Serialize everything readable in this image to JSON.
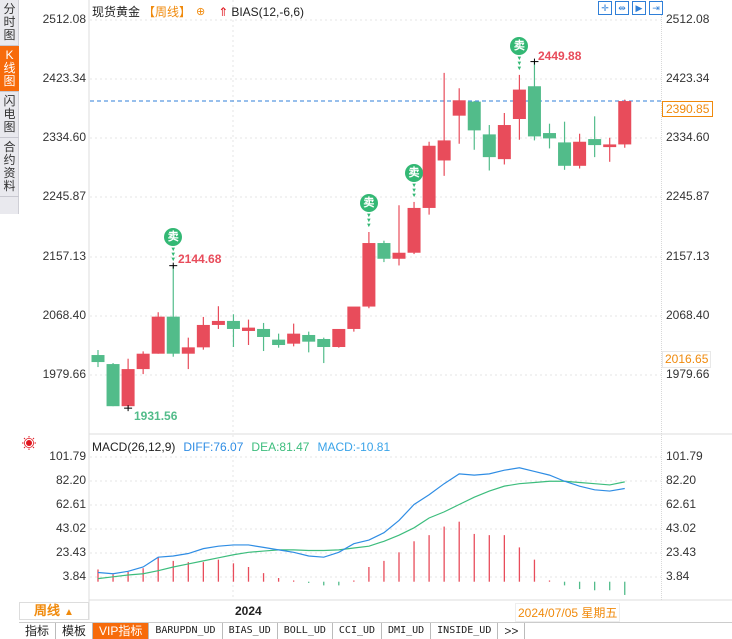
{
  "sidebar": {
    "tabs": [
      {
        "label": "分时图",
        "active": false
      },
      {
        "label": "K线图",
        "active": true
      },
      {
        "label": "闪电图",
        "active": false
      },
      {
        "label": "合约资料",
        "active": false
      }
    ]
  },
  "header": {
    "title": "现货黄金",
    "period": "【周线】",
    "plus_icon": "⊕",
    "arrow_icon": "⇑",
    "indicator": "BIAS(12,-6,6)"
  },
  "toolbar": {
    "buttons": [
      {
        "name": "crosshair-button",
        "icon": "✛"
      },
      {
        "name": "zoom-range-button",
        "icon": "⇹"
      },
      {
        "name": "zoom-in-button",
        "icon": "▶"
      },
      {
        "name": "move-end-button",
        "icon": "⇥"
      }
    ]
  },
  "price_axis": {
    "ticks": [
      "2512.08",
      "2423.34",
      "2334.60",
      "2245.87",
      "2157.13",
      "2068.40",
      "1979.66"
    ],
    "current_price": "2390.85",
    "cursor_price": "2016.65"
  },
  "annotations": {
    "low_label": "1931.56",
    "mid_high_label": "2144.68",
    "high_label": "2449.88",
    "sell_label": "卖"
  },
  "macd": {
    "name": "MACD(26,12,9)",
    "diff": "DIFF:76.07",
    "dea": "DEA:81.47",
    "macd": "MACD:-10.81",
    "ticks": [
      "101.79",
      "82.20",
      "62.61",
      "43.02",
      "23.43",
      "3.84"
    ]
  },
  "footer": {
    "period_label": "周线",
    "period_arrow": "▲",
    "year_label": "2024",
    "cursor_date": "2024/07/05 星期五"
  },
  "bottom_tabs": [
    {
      "label": "指标",
      "mono": false,
      "vip": false
    },
    {
      "label": "模板",
      "mono": false,
      "vip": false
    },
    {
      "label": "VIP指标",
      "mono": false,
      "vip": true
    },
    {
      "label": "BARUPDN_UD",
      "mono": true,
      "vip": false
    },
    {
      "label": "BIAS_UD",
      "mono": true,
      "vip": false
    },
    {
      "label": "BOLL_UD",
      "mono": true,
      "vip": false
    },
    {
      "label": "CCI_UD",
      "mono": true,
      "vip": false
    },
    {
      "label": "DMI_UD",
      "mono": true,
      "vip": false
    },
    {
      "label": "INSIDE_UD",
      "mono": true,
      "vip": false
    },
    {
      "label": ">>",
      "mono": false,
      "vip": false
    }
  ],
  "colors": {
    "up": "#e84c5b",
    "down": "#52bc8a",
    "accent": "#f76b0b",
    "diff_line": "#2f8de4",
    "dea_line": "#3dbd7d",
    "current_line": "#2f7fd8"
  },
  "chart_data": [
    {
      "type": "candlestick",
      "title": "现货黄金【周线】",
      "ylabel": "Price",
      "ylim": [
        1931.56,
        2512.08
      ],
      "y_ticks": [
        2512.08,
        2423.34,
        2334.6,
        2245.87,
        2157.13,
        2068.4,
        1979.66
      ],
      "current_price": 2390.85,
      "max_annotation": 2449.88,
      "min_annotation": 1931.56,
      "local_high_annotation": 2144.68,
      "grid": true,
      "candles": [
        {
          "o": 2011.0,
          "h": 2018.5,
          "l": 1993.0,
          "c": 2000.5
        },
        {
          "o": 1997.5,
          "h": 1999.0,
          "l": 1934.5,
          "c": 1934.5
        },
        {
          "o": 1934.5,
          "h": 2005.5,
          "l": 1931.56,
          "c": 1990.0
        },
        {
          "o": 1990.0,
          "h": 2016.5,
          "l": 1982.5,
          "c": 2013.0
        },
        {
          "o": 2013.0,
          "h": 2075.0,
          "l": 2013.0,
          "c": 2068.4
        },
        {
          "o": 2068.4,
          "h": 2144.68,
          "l": 2008.5,
          "c": 2013.0
        },
        {
          "o": 2013.0,
          "h": 2037.0,
          "l": 1990.0,
          "c": 2022.5
        },
        {
          "o": 2022.5,
          "h": 2068.0,
          "l": 2019.0,
          "c": 2056.0
        },
        {
          "o": 2056.0,
          "h": 2084.0,
          "l": 2050.0,
          "c": 2062.0
        },
        {
          "o": 2062.0,
          "h": 2072.0,
          "l": 2023.0,
          "c": 2050.0
        },
        {
          "o": 2047.0,
          "h": 2064.0,
          "l": 2026.0,
          "c": 2052.0
        },
        {
          "o": 2050.0,
          "h": 2059.0,
          "l": 2017.0,
          "c": 2038.0
        },
        {
          "o": 2034.0,
          "h": 2043.0,
          "l": 2022.0,
          "c": 2026.0
        },
        {
          "o": 2028.0,
          "h": 2058.0,
          "l": 2024.0,
          "c": 2043.0
        },
        {
          "o": 2041.0,
          "h": 2046.0,
          "l": 2015.0,
          "c": 2031.0
        },
        {
          "o": 2035.0,
          "h": 2037.0,
          "l": 1999.0,
          "c": 2023.0
        },
        {
          "o": 2023.0,
          "h": 2049.0,
          "l": 2022.0,
          "c": 2050.0
        },
        {
          "o": 2050.0,
          "h": 2079.0,
          "l": 2046.0,
          "c": 2083.5
        },
        {
          "o": 2083.5,
          "h": 2195.0,
          "l": 2081.0,
          "c": 2178.5
        },
        {
          "o": 2178.5,
          "h": 2182.0,
          "l": 2150.0,
          "c": 2155.0
        },
        {
          "o": 2155.0,
          "h": 2235.0,
          "l": 2145.0,
          "c": 2164.0
        },
        {
          "o": 2164.0,
          "h": 2240.0,
          "l": 2162.0,
          "c": 2231.0
        },
        {
          "o": 2231.0,
          "h": 2330.0,
          "l": 2221.0,
          "c": 2324.0
        },
        {
          "o": 2302.0,
          "h": 2433.0,
          "l": 2279.0,
          "c": 2332.0
        },
        {
          "o": 2369.0,
          "h": 2410.0,
          "l": 2327.0,
          "c": 2392.0
        },
        {
          "o": 2390.0,
          "h": 2391.0,
          "l": 2318.0,
          "c": 2347.0
        },
        {
          "o": 2341.0,
          "h": 2355.0,
          "l": 2287.0,
          "c": 2307.0
        },
        {
          "o": 2304.0,
          "h": 2373.0,
          "l": 2296.0,
          "c": 2355.0
        },
        {
          "o": 2364.0,
          "h": 2430.0,
          "l": 2333.0,
          "c": 2408.0
        },
        {
          "o": 2413.0,
          "h": 2449.88,
          "l": 2332.0,
          "c": 2338.0
        },
        {
          "o": 2343.0,
          "h": 2357.0,
          "l": 2320.0,
          "c": 2335.0
        },
        {
          "o": 2329.0,
          "h": 2360.0,
          "l": 2288.0,
          "c": 2294.0
        },
        {
          "o": 2294.0,
          "h": 2342.0,
          "l": 2290.0,
          "c": 2330.0
        },
        {
          "o": 2334.0,
          "h": 2368.0,
          "l": 2307.0,
          "c": 2325.0
        },
        {
          "o": 2322.0,
          "h": 2336.0,
          "l": 2300.0,
          "c": 2326.0
        },
        {
          "o": 2326.0,
          "h": 2393.0,
          "l": 2321.0,
          "c": 2390.85
        }
      ],
      "sell_signals_at_candle": [
        5,
        18,
        21,
        28
      ]
    },
    {
      "type": "line+bar",
      "title": "MACD(26,12,9)",
      "ylim": [
        0,
        110
      ],
      "y_ticks": [
        101.79,
        82.2,
        62.61,
        43.02,
        23.43,
        3.84
      ],
      "legend": [
        "DIFF:76.07",
        "DEA:81.47",
        "MACD:-10.81"
      ],
      "series": [
        {
          "name": "DIFF",
          "values": [
            7.5,
            6.5,
            8.5,
            12,
            20,
            21,
            23,
            27,
            29,
            30,
            30,
            28,
            26,
            24,
            21,
            20,
            24,
            31,
            34,
            40,
            50,
            63,
            71,
            80,
            88,
            87,
            88,
            91,
            93,
            90,
            87,
            82,
            78,
            75,
            74,
            76.07
          ]
        },
        {
          "name": "DEA",
          "values": [
            2.5,
            4,
            5.5,
            6.5,
            9,
            12,
            14.5,
            17,
            19.5,
            22,
            24,
            25,
            26,
            26,
            25.5,
            25.5,
            26,
            27.5,
            29,
            33,
            38,
            44,
            52,
            57,
            63,
            69,
            74,
            78,
            80,
            81,
            82,
            82,
            81,
            80,
            79,
            81.47
          ]
        },
        {
          "name": "MACD",
          "values": [
            10,
            6,
            8,
            11,
            20,
            17,
            16,
            16,
            18,
            15,
            12,
            7,
            3,
            1,
            -1,
            -3,
            -3,
            1,
            12,
            17,
            24,
            33,
            38,
            45,
            49,
            39,
            38,
            38,
            28,
            18,
            1,
            -3,
            -6,
            -7,
            -7,
            -10.81
          ]
        }
      ]
    }
  ]
}
